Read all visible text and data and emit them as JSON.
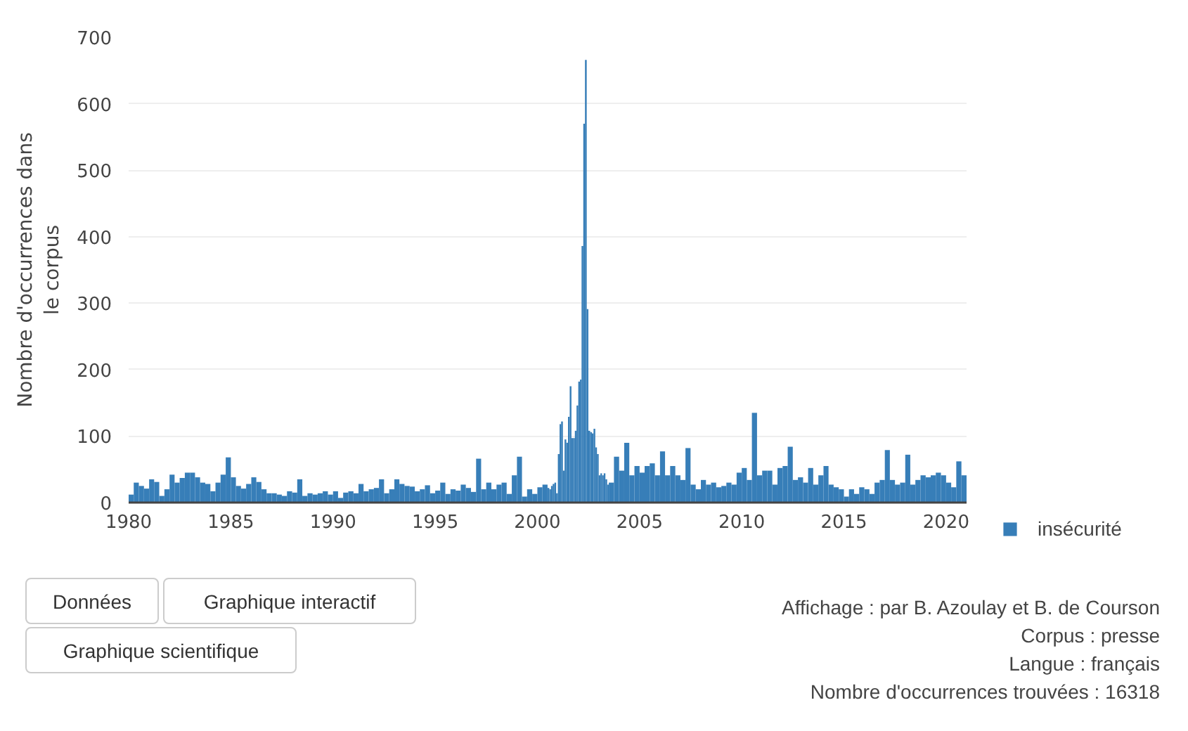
{
  "chart_data": {
    "type": "bar",
    "ylabel": "Nombre d'occurrences dans\nle corpus",
    "x": [
      "1980-01",
      "1980-04",
      "1980-07",
      "1980-10",
      "1981-01",
      "1981-04",
      "1981-07",
      "1981-10",
      "1982-01",
      "1982-04",
      "1982-07",
      "1982-10",
      "1983-01",
      "1983-04",
      "1983-07",
      "1983-10",
      "1984-01",
      "1984-04",
      "1984-07",
      "1984-10",
      "1985-01",
      "1985-04",
      "1985-07",
      "1985-10",
      "1986-01",
      "1986-04",
      "1986-07",
      "1986-10",
      "1987-01",
      "1987-04",
      "1987-07",
      "1987-10",
      "1988-01",
      "1988-04",
      "1988-07",
      "1988-10",
      "1989-01",
      "1989-04",
      "1989-07",
      "1989-10",
      "1990-01",
      "1990-04",
      "1990-07",
      "1990-10",
      "1991-01",
      "1991-04",
      "1991-07",
      "1991-10",
      "1992-01",
      "1992-04",
      "1992-07",
      "1992-10",
      "1993-01",
      "1993-04",
      "1993-07",
      "1993-10",
      "1994-01",
      "1994-04",
      "1994-07",
      "1994-10",
      "1995-01",
      "1995-04",
      "1995-07",
      "1995-10",
      "1996-01",
      "1996-04",
      "1996-07",
      "1996-10",
      "1997-01",
      "1997-04",
      "1997-07",
      "1997-10",
      "1998-01",
      "1998-04",
      "1998-07",
      "1998-10",
      "1999-01",
      "1999-04",
      "1999-07",
      "1999-10",
      "2000-01",
      "2000-04",
      "2000-07",
      "2000-08",
      "2000-09",
      "2000-10",
      "2000-11",
      "2000-12",
      "2001-01",
      "2001-02",
      "2001-03",
      "2001-04",
      "2001-05",
      "2001-06",
      "2001-07",
      "2001-08",
      "2001-09",
      "2001-10",
      "2001-11",
      "2001-12",
      "2002-01",
      "2002-02",
      "2002-03",
      "2002-04",
      "2002-05",
      "2002-06",
      "2002-07",
      "2002-08",
      "2002-09",
      "2002-10",
      "2002-11",
      "2002-12",
      "2003-01",
      "2003-02",
      "2003-03",
      "2003-04",
      "2003-05",
      "2003-06",
      "2003-07",
      "2003-10",
      "2004-01",
      "2004-04",
      "2004-07",
      "2004-10",
      "2005-01",
      "2005-04",
      "2005-07",
      "2005-10",
      "2006-01",
      "2006-04",
      "2006-07",
      "2006-10",
      "2007-01",
      "2007-04",
      "2007-07",
      "2007-10",
      "2008-01",
      "2008-04",
      "2008-07",
      "2008-10",
      "2009-01",
      "2009-04",
      "2009-07",
      "2009-10",
      "2010-01",
      "2010-04",
      "2010-07",
      "2010-10",
      "2011-01",
      "2011-04",
      "2011-07",
      "2011-10",
      "2012-01",
      "2012-04",
      "2012-07",
      "2012-10",
      "2013-01",
      "2013-04",
      "2013-07",
      "2013-10",
      "2014-01",
      "2014-04",
      "2014-07",
      "2014-10",
      "2015-01",
      "2015-04",
      "2015-07",
      "2015-10",
      "2016-01",
      "2016-04",
      "2016-07",
      "2016-10",
      "2017-01",
      "2017-04",
      "2017-07",
      "2017-10",
      "2018-01",
      "2018-04",
      "2018-07",
      "2018-10",
      "2019-01",
      "2019-04",
      "2019-07",
      "2019-10",
      "2020-01",
      "2020-04",
      "2020-07",
      "2020-10"
    ],
    "series": [
      {
        "name": "insécurité",
        "color": "#377eb8",
        "values": [
          12,
          30,
          25,
          21,
          35,
          31,
          10,
          20,
          42,
          30,
          37,
          45,
          45,
          38,
          30,
          28,
          17,
          30,
          42,
          68,
          38,
          25,
          21,
          28,
          38,
          31,
          20,
          14,
          14,
          12,
          10,
          17,
          15,
          35,
          10,
          14,
          12,
          14,
          17,
          12,
          17,
          7,
          15,
          17,
          14,
          28,
          17,
          20,
          22,
          35,
          14,
          20,
          35,
          28,
          25,
          24,
          17,
          20,
          26,
          14,
          18,
          30,
          13,
          20,
          18,
          27,
          22,
          16,
          66,
          20,
          30,
          20,
          27,
          30,
          13,
          41,
          69,
          9,
          20,
          13,
          23,
          27,
          22,
          20,
          25,
          28,
          30,
          14,
          73,
          118,
          122,
          48,
          95,
          90,
          129,
          175,
          97,
          97,
          108,
          146,
          182,
          185,
          386,
          570,
          666,
          291,
          108,
          106,
          104,
          111,
          83,
          73,
          41,
          44,
          41,
          44,
          35,
          27,
          30,
          69,
          48,
          90,
          41,
          55,
          45,
          55,
          59,
          41,
          77,
          41,
          55,
          41,
          34,
          82,
          27,
          20,
          34,
          27,
          30,
          23,
          25,
          30,
          27,
          45,
          52,
          34,
          135,
          41,
          48,
          48,
          27,
          52,
          55,
          84,
          34,
          38,
          30,
          52,
          27,
          41,
          55,
          27,
          23,
          20,
          9,
          20,
          13,
          23,
          20,
          13,
          30,
          34,
          79,
          34,
          27,
          30,
          72,
          27,
          34,
          41,
          38,
          41,
          45,
          41,
          30,
          23,
          62,
          41
        ]
      }
    ],
    "xlim": [
      "1980-01",
      "2021-01"
    ],
    "xticks": [
      "1980",
      "1985",
      "1990",
      "1995",
      "2000",
      "2005",
      "2010",
      "2015",
      "2020"
    ],
    "ylim": [
      0,
      700
    ],
    "yticks": [
      0,
      100,
      200,
      300,
      400,
      500,
      600,
      700
    ],
    "grid": "y",
    "legend": "bottom right",
    "annotations": [
      "Données",
      "Graphique interactif",
      "Graphique scientifique",
      "Affichage : par B. Azoulay et B. de Courson",
      "Corpus : presse",
      "Langue : français",
      "Nombre d'occurrences trouvées : 16318"
    ]
  }
}
